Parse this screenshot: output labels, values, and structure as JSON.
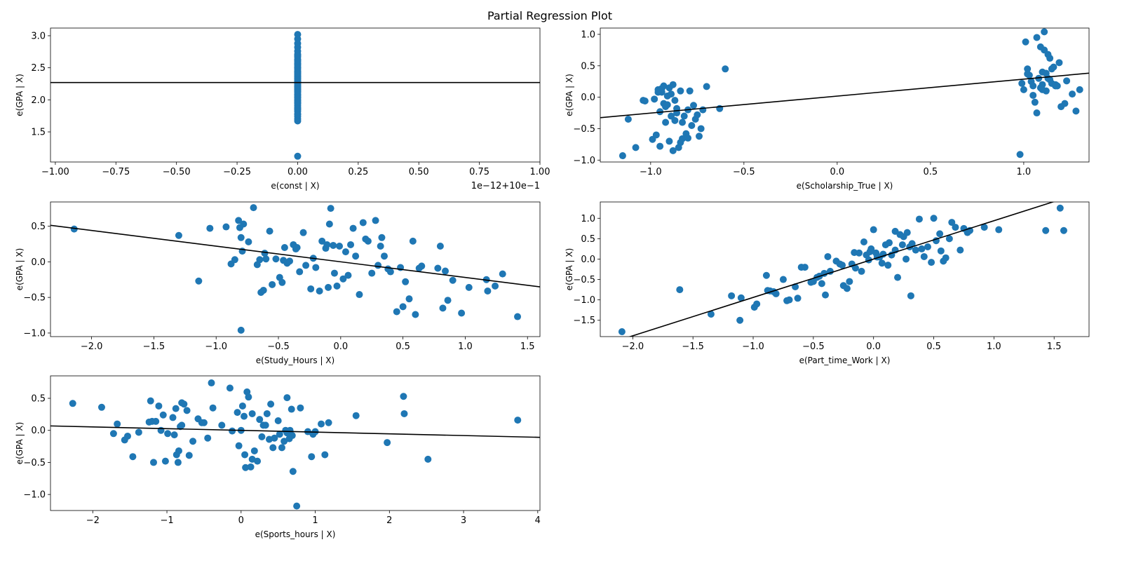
{
  "figure": {
    "title": "Partial Regression Plot"
  },
  "colors": {
    "point": "#1f77b4",
    "line": "#000000"
  },
  "chart_data": [
    {
      "type": "scatter",
      "title": "",
      "xlabel": "e(const | X)",
      "ylabel": "e(GPA | X)",
      "x_offset_text": "1e−12+10e−1",
      "xlim": [
        -1.02,
        1.0
      ],
      "ylim": [
        1.03,
        3.12
      ],
      "xticks": [
        -1.0,
        -0.75,
        -0.5,
        -0.25,
        0.0,
        0.25,
        0.5,
        0.75,
        1.0
      ],
      "xtick_labels": [
        "−1.00",
        "−0.75",
        "−0.50",
        "−0.25",
        "0.00",
        "0.25",
        "0.50",
        "0.75",
        "1.00"
      ],
      "yticks": [
        1.5,
        2.0,
        2.5,
        3.0
      ],
      "ytick_labels": [
        "1.5",
        "2.0",
        "2.5",
        "3.0"
      ],
      "fit_line": {
        "kind": "horizontal",
        "y": 2.27
      },
      "points": {
        "x": [
          0,
          0,
          0,
          0,
          0,
          0,
          0,
          0,
          0,
          0,
          0,
          0,
          0,
          0,
          0,
          0,
          0,
          0,
          0,
          0,
          0,
          0,
          0,
          0,
          0,
          0,
          0,
          0,
          0,
          0,
          0,
          0,
          0,
          0,
          0,
          0,
          0,
          0,
          0,
          0,
          0,
          0,
          0,
          0,
          0,
          0,
          0,
          0,
          0,
          0,
          0,
          0,
          0,
          0,
          0,
          0,
          0,
          0,
          0,
          0
        ],
        "y": [
          3.02,
          2.95,
          2.88,
          2.82,
          2.76,
          2.71,
          2.67,
          2.63,
          2.6,
          2.57,
          2.54,
          2.51,
          2.48,
          2.45,
          2.42,
          2.39,
          2.37,
          2.34,
          2.31,
          2.28,
          2.26,
          2.23,
          2.2,
          2.18,
          2.15,
          2.12,
          2.09,
          2.06,
          2.03,
          2.0,
          1.97,
          1.94,
          1.91,
          1.88,
          1.85,
          1.82,
          1.78,
          1.74,
          1.7,
          1.67,
          1.12,
          2.56,
          2.44,
          2.33,
          2.24,
          2.16,
          2.08,
          1.99,
          2.62,
          2.5,
          2.36,
          2.29,
          2.21,
          2.13,
          2.04,
          1.95,
          1.86,
          1.77,
          2.69,
          2.41
        ]
      }
    },
    {
      "type": "scatter",
      "title": "",
      "xlabel": "e(Scholarship_True | X)",
      "ylabel": "e(GPA | X)",
      "xlim": [
        -1.27,
        1.35
      ],
      "ylim": [
        -1.03,
        1.1
      ],
      "xticks": [
        -1.0,
        -0.5,
        0.0,
        0.5,
        1.0
      ],
      "xtick_labels": [
        "−1.0",
        "−0.5",
        "0.0",
        "0.5",
        "1.0"
      ],
      "yticks": [
        -1.0,
        -0.5,
        0.0,
        0.5,
        1.0
      ],
      "ytick_labels": [
        "−1.0",
        "−0.5",
        "0.0",
        "0.5",
        "1.0"
      ],
      "fit_line": {
        "kind": "linear",
        "slope": 0.27,
        "intercept": 0.018
      },
      "points": {
        "x": [
          -1.15,
          -1.12,
          -1.08,
          -1.04,
          -1.03,
          -0.99,
          -0.97,
          -0.96,
          -0.95,
          -0.95,
          -0.94,
          -0.93,
          -0.93,
          -0.92,
          -0.92,
          -0.91,
          -0.9,
          -0.9,
          -0.89,
          -0.89,
          -0.88,
          -0.88,
          -0.87,
          -0.87,
          -0.86,
          -0.85,
          -0.84,
          -0.83,
          -0.82,
          -0.81,
          -0.8,
          -0.79,
          -0.78,
          -0.77,
          -0.76,
          -0.75,
          -0.74,
          -0.73,
          -0.72,
          -0.7,
          -0.63,
          -0.6,
          -0.98,
          -0.96,
          -0.94,
          -0.91,
          -0.86,
          -0.84,
          -0.83,
          -0.8,
          0.98,
          0.99,
          1.0,
          1.01,
          1.02,
          1.03,
          1.04,
          1.05,
          1.06,
          1.07,
          1.07,
          1.08,
          1.09,
          1.09,
          1.1,
          1.1,
          1.11,
          1.11,
          1.12,
          1.12,
          1.13,
          1.13,
          1.14,
          1.15,
          1.15,
          1.16,
          1.17,
          1.17,
          1.18,
          1.2,
          1.22,
          1.23,
          1.26,
          1.28,
          1.3,
          1.02,
          1.05,
          1.1,
          1.14,
          1.19
        ],
        "y": [
          -0.93,
          -0.35,
          -0.8,
          -0.05,
          -0.06,
          -0.67,
          -0.6,
          0.12,
          -0.23,
          -0.78,
          0.08,
          -0.1,
          0.18,
          -0.4,
          -0.15,
          0.02,
          0.15,
          -0.7,
          0.05,
          -0.3,
          0.2,
          -0.85,
          -0.37,
          -0.05,
          -0.18,
          -0.8,
          -0.72,
          -0.66,
          -0.3,
          -0.58,
          -0.2,
          0.1,
          -0.45,
          -0.13,
          -0.35,
          -0.28,
          -0.62,
          -0.5,
          -0.2,
          0.17,
          -0.18,
          0.45,
          -0.03,
          0.08,
          0.14,
          -0.12,
          -0.25,
          0.1,
          -0.4,
          -0.65,
          -0.91,
          0.22,
          0.12,
          0.88,
          0.45,
          0.35,
          0.25,
          0.18,
          -0.08,
          -0.25,
          0.95,
          0.3,
          0.8,
          0.15,
          0.4,
          0.2,
          1.04,
          0.75,
          0.1,
          0.38,
          0.68,
          0.3,
          0.62,
          0.22,
          0.45,
          0.48,
          0.18,
          0.2,
          0.18,
          -0.15,
          -0.1,
          0.26,
          0.05,
          -0.22,
          0.12,
          0.37,
          0.03,
          0.12,
          0.28,
          0.55
        ]
      }
    },
    {
      "type": "scatter",
      "title": "",
      "xlabel": "e(Study_Hours | X)",
      "ylabel": "e(GPA | X)",
      "xlim": [
        -2.33,
        1.6
      ],
      "ylim": [
        -1.05,
        0.84
      ],
      "xticks": [
        -2.0,
        -1.5,
        -1.0,
        -0.5,
        0.0,
        0.5,
        1.0,
        1.5
      ],
      "xtick_labels": [
        "−2.0",
        "−1.5",
        "−1.0",
        "−0.5",
        "0.0",
        "0.5",
        "1.0",
        "1.5"
      ],
      "yticks": [
        -1.0,
        -0.5,
        0.0,
        0.5
      ],
      "ytick_labels": [
        "−1.0",
        "−0.5",
        "0.0",
        "0.5"
      ],
      "fit_line": {
        "kind": "linear",
        "slope": -0.22,
        "intercept": 0.0
      },
      "points": {
        "x": [
          -2.14,
          -1.3,
          -1.14,
          -1.05,
          -0.92,
          -0.88,
          -0.85,
          -0.82,
          -0.81,
          -0.8,
          -0.79,
          -0.78,
          -0.74,
          -0.7,
          -0.67,
          -0.64,
          -0.62,
          -0.61,
          -0.6,
          -0.57,
          -0.55,
          -0.52,
          -0.49,
          -0.47,
          -0.46,
          -0.45,
          -0.43,
          -0.41,
          -0.38,
          -0.36,
          -0.35,
          -0.33,
          -0.3,
          -0.28,
          -0.24,
          -0.22,
          -0.2,
          -0.17,
          -0.15,
          -0.12,
          -0.11,
          -0.1,
          -0.09,
          -0.08,
          -0.06,
          -0.05,
          -0.03,
          -0.01,
          0.02,
          0.04,
          0.06,
          0.08,
          0.1,
          0.12,
          0.15,
          0.18,
          0.2,
          0.22,
          0.25,
          0.28,
          0.3,
          0.32,
          0.33,
          0.35,
          0.38,
          0.4,
          0.45,
          0.48,
          0.5,
          0.52,
          0.55,
          0.58,
          0.6,
          0.65,
          0.78,
          0.8,
          0.82,
          0.84,
          0.86,
          0.9,
          0.97,
          1.03,
          1.17,
          1.18,
          1.24,
          1.3,
          1.42,
          -0.8,
          -0.65,
          0.63
        ],
        "y": [
          0.46,
          0.37,
          -0.27,
          0.47,
          0.49,
          -0.03,
          0.03,
          0.58,
          0.48,
          -0.96,
          0.15,
          0.53,
          0.28,
          0.76,
          -0.04,
          -0.43,
          -0.4,
          0.12,
          0.04,
          0.43,
          -0.32,
          0.04,
          -0.22,
          -0.29,
          0.02,
          0.2,
          -0.02,
          0.01,
          0.24,
          0.18,
          0.2,
          -0.14,
          0.41,
          -0.05,
          -0.38,
          0.05,
          -0.08,
          -0.41,
          0.29,
          0.19,
          0.24,
          -0.36,
          0.53,
          0.75,
          0.23,
          -0.16,
          -0.34,
          0.22,
          -0.24,
          0.14,
          -0.19,
          0.24,
          0.47,
          0.08,
          -0.46,
          0.55,
          0.32,
          0.29,
          -0.16,
          0.58,
          -0.05,
          0.22,
          0.34,
          0.08,
          -0.1,
          -0.14,
          -0.7,
          -0.08,
          -0.63,
          -0.28,
          -0.52,
          0.29,
          -0.74,
          -0.06,
          -0.09,
          0.22,
          -0.65,
          -0.13,
          -0.54,
          -0.26,
          -0.72,
          -0.36,
          -0.25,
          -0.41,
          -0.34,
          -0.17,
          -0.77,
          0.34,
          0.03,
          -0.09
        ]
      }
    },
    {
      "type": "scatter",
      "title": "",
      "xlabel": "e(Part_time_Work | X)",
      "ylabel": "e(GPA | X)",
      "xlim": [
        -2.27,
        1.79
      ],
      "ylim": [
        -1.9,
        1.4
      ],
      "xticks": [
        -2.0,
        -1.5,
        -1.0,
        -0.5,
        0.0,
        0.5,
        1.0,
        1.5
      ],
      "xtick_labels": [
        "−2.0",
        "−1.5",
        "−1.0",
        "−0.5",
        "0.0",
        "0.5",
        "1.0",
        "1.5"
      ],
      "yticks": [
        -1.5,
        -1.0,
        -0.5,
        0.0,
        0.5,
        1.0
      ],
      "ytick_labels": [
        "−1.5",
        "−1.0",
        "−0.5",
        "0.0",
        "0.5",
        "1.0"
      ],
      "fit_line": {
        "kind": "linear",
        "slope": 0.94,
        "intercept": 0.0
      },
      "points": {
        "x": [
          -2.09,
          -1.61,
          -1.35,
          -1.18,
          -1.11,
          -1.1,
          -0.99,
          -0.97,
          -0.89,
          -0.88,
          -0.86,
          -0.83,
          -0.81,
          -0.75,
          -0.72,
          -0.7,
          -0.65,
          -0.63,
          -0.57,
          -0.52,
          -0.5,
          -0.47,
          -0.43,
          -0.41,
          -0.4,
          -0.38,
          -0.36,
          -0.31,
          -0.28,
          -0.26,
          -0.25,
          -0.22,
          -0.2,
          -0.18,
          -0.16,
          -0.15,
          -0.12,
          -0.1,
          -0.08,
          -0.06,
          -0.04,
          -0.02,
          0.0,
          0.02,
          0.03,
          0.05,
          0.08,
          0.1,
          0.12,
          0.13,
          0.15,
          0.18,
          0.2,
          0.22,
          0.25,
          0.28,
          0.3,
          0.32,
          0.35,
          0.38,
          0.4,
          0.42,
          0.45,
          0.48,
          0.5,
          0.52,
          0.55,
          0.58,
          0.6,
          0.63,
          0.65,
          0.68,
          0.72,
          0.75,
          0.78,
          0.8,
          0.92,
          1.04,
          1.43,
          1.55,
          1.58,
          0.24,
          0.31,
          0.07,
          -0.6,
          0.18,
          -0.45,
          0.27,
          -0.03,
          0.56
        ],
        "y": [
          -1.78,
          -0.75,
          -1.35,
          -0.9,
          -1.5,
          -0.95,
          -1.18,
          -1.1,
          -0.4,
          -0.77,
          -0.78,
          -0.8,
          -0.85,
          -0.5,
          -1.02,
          -1.0,
          -0.68,
          -0.96,
          -0.2,
          -0.57,
          -0.55,
          -0.45,
          -0.6,
          -0.35,
          -0.88,
          0.06,
          -0.3,
          -0.05,
          -0.12,
          -0.15,
          -0.65,
          -0.72,
          -0.55,
          -0.12,
          0.16,
          -0.22,
          0.15,
          -0.3,
          0.42,
          0.1,
          -0.02,
          0.25,
          0.72,
          0.15,
          0.05,
          0.05,
          0.12,
          0.35,
          -0.15,
          0.4,
          0.1,
          0.68,
          -0.45,
          0.6,
          0.55,
          0.65,
          0.3,
          0.38,
          0.22,
          0.98,
          0.25,
          0.06,
          0.3,
          -0.08,
          1.0,
          0.45,
          0.62,
          -0.05,
          0.03,
          0.5,
          0.9,
          0.78,
          0.22,
          0.75,
          0.65,
          0.7,
          0.78,
          0.72,
          0.7,
          1.25,
          0.7,
          0.35,
          -0.9,
          -0.1,
          -0.2,
          0.22,
          -0.42,
          0.0,
          0.18,
          0.2
        ]
      }
    },
    {
      "type": "scatter",
      "title": "",
      "xlabel": "e(Sports_hours | X)",
      "ylabel": "e(GPA | X)",
      "xlim": [
        -2.57,
        4.03
      ],
      "ylim": [
        -1.25,
        0.85
      ],
      "xticks": [
        -2,
        -1,
        0,
        1,
        2,
        3,
        4
      ],
      "xtick_labels": [
        "−2",
        "−1",
        "0",
        "1",
        "2",
        "3",
        "4"
      ],
      "yticks": [
        -1.0,
        -0.5,
        0.0,
        0.5
      ],
      "ytick_labels": [
        "−1.0",
        "−0.5",
        "0.0",
        "0.5"
      ],
      "fit_line": {
        "kind": "linear",
        "slope": -0.027,
        "intercept": 0.0
      },
      "points": {
        "x": [
          -2.27,
          -1.88,
          -1.72,
          -1.67,
          -1.57,
          -1.53,
          -1.46,
          -1.38,
          -1.24,
          -1.22,
          -1.2,
          -1.18,
          -1.11,
          -1.08,
          -1.05,
          -1.02,
          -0.99,
          -0.92,
          -0.9,
          -0.88,
          -0.87,
          -0.85,
          -0.84,
          -0.82,
          -0.8,
          -0.77,
          -0.73,
          -0.7,
          -0.65,
          -0.58,
          -0.53,
          -0.5,
          -0.45,
          -0.4,
          -0.38,
          -0.26,
          -0.15,
          -0.12,
          -0.05,
          -0.03,
          0.0,
          0.02,
          0.04,
          0.05,
          0.08,
          0.1,
          0.13,
          0.15,
          0.18,
          0.22,
          0.25,
          0.28,
          0.3,
          0.33,
          0.35,
          0.38,
          0.4,
          0.43,
          0.5,
          0.52,
          0.55,
          0.58,
          0.6,
          0.62,
          0.65,
          0.68,
          0.7,
          0.75,
          0.8,
          0.95,
          0.97,
          1.0,
          1.08,
          1.13,
          1.18,
          1.55,
          1.97,
          2.19,
          2.2,
          2.52,
          3.73,
          -0.8,
          0.15,
          0.45,
          0.66,
          -1.15,
          0.62,
          0.9,
          0.69,
          0.06
        ],
        "y": [
          0.42,
          0.36,
          -0.05,
          0.1,
          -0.15,
          -0.09,
          -0.41,
          -0.03,
          0.13,
          0.46,
          0.14,
          -0.5,
          0.38,
          0.0,
          0.24,
          -0.48,
          -0.05,
          0.2,
          -0.07,
          0.34,
          -0.38,
          -0.5,
          -0.32,
          0.06,
          0.43,
          0.41,
          0.31,
          -0.39,
          -0.17,
          0.18,
          0.12,
          0.12,
          -0.12,
          0.74,
          0.35,
          0.08,
          0.66,
          -0.01,
          0.28,
          -0.24,
          0.0,
          0.38,
          0.22,
          -0.38,
          0.6,
          0.52,
          -0.57,
          0.26,
          -0.32,
          -0.48,
          0.17,
          -0.1,
          0.08,
          0.08,
          0.26,
          -0.14,
          0.41,
          -0.27,
          0.15,
          -0.06,
          -0.27,
          -0.17,
          0.0,
          0.51,
          -0.13,
          0.33,
          -0.64,
          -1.18,
          0.35,
          -0.41,
          -0.06,
          -0.02,
          0.1,
          -0.38,
          0.12,
          0.23,
          -0.19,
          0.53,
          0.26,
          -0.45,
          0.16,
          0.08,
          -0.45,
          -0.12,
          0.0,
          0.14,
          -0.04,
          -0.02,
          -0.08,
          -0.58
        ]
      }
    }
  ]
}
